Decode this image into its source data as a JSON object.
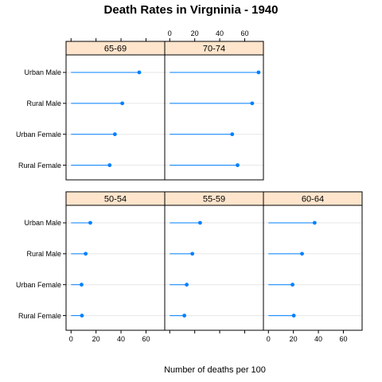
{
  "chart_data": {
    "type": "dotplot",
    "title": "Death Rates in Virgninia - 1940",
    "xlabel": "Number of deaths per 100",
    "ylabel": "",
    "xlim": [
      -4,
      75
    ],
    "x_ticks": [
      0,
      20,
      40,
      60
    ],
    "categories": [
      "Rural Female",
      "Urban Female",
      "Rural Male",
      "Urban Male"
    ],
    "colors": {
      "point": "#0080ff",
      "line": "#0080ff",
      "strip": "#ffe5cc",
      "grid": "#e6e6e6"
    },
    "panels": [
      {
        "label": "50-54",
        "values": [
          8.7,
          8.4,
          11.7,
          15.4
        ]
      },
      {
        "label": "55-59",
        "values": [
          11.7,
          13.6,
          18.1,
          24.3
        ]
      },
      {
        "label": "60-64",
        "values": [
          20.3,
          19.3,
          26.9,
          37.0
        ]
      },
      {
        "label": "65-69",
        "values": [
          30.9,
          35.1,
          41.0,
          54.6
        ]
      },
      {
        "label": "70-74",
        "values": [
          54.3,
          50.0,
          66.0,
          71.1
        ]
      }
    ]
  }
}
